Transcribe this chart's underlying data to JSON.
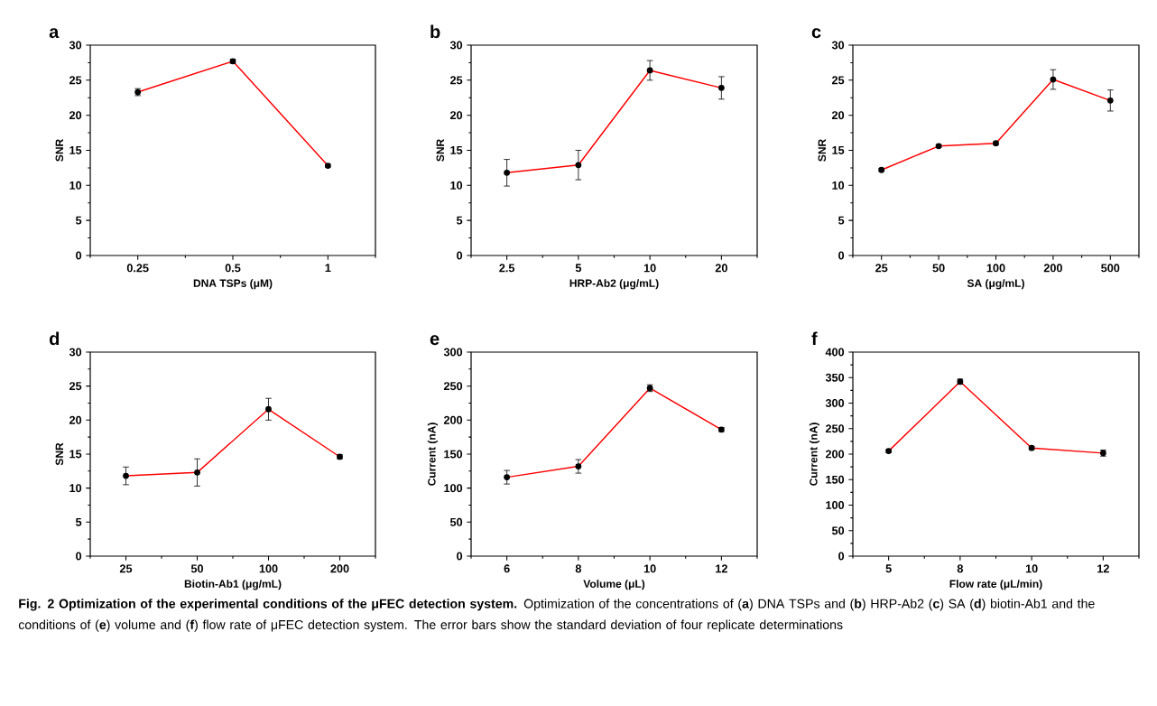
{
  "chart_data": [
    {
      "type": "line",
      "title": "a",
      "xlabel": "DNA TSPs (μM)",
      "ylabel": "SNR",
      "categories": [
        "0.25",
        "0.5",
        "1"
      ],
      "values": [
        23.3,
        27.7,
        12.8
      ],
      "errors": [
        0.5,
        0.3,
        0.2
      ],
      "color": "#ff0000",
      "marker": "circle",
      "ylim": [
        0,
        30
      ],
      "yticks": [
        0,
        5,
        10,
        15,
        20,
        25,
        30
      ]
    },
    {
      "type": "line",
      "title": "b",
      "xlabel": "HRP-Ab2 (μg/mL)",
      "ylabel": "SNR",
      "categories": [
        "2.5",
        "5",
        "10",
        "20"
      ],
      "values": [
        11.8,
        12.9,
        26.4,
        23.9
      ],
      "errors": [
        1.9,
        2.1,
        1.4,
        1.6
      ],
      "color": "#ff0000",
      "marker": "circle",
      "ylim": [
        0,
        30
      ],
      "yticks": [
        0,
        5,
        10,
        15,
        20,
        25,
        30
      ]
    },
    {
      "type": "line",
      "title": "c",
      "xlabel": "SA (μg/mL)",
      "ylabel": "SNR",
      "categories": [
        "25",
        "50",
        "100",
        "200",
        "500"
      ],
      "values": [
        12.2,
        15.6,
        16.0,
        25.1,
        22.1
      ],
      "errors": [
        0.2,
        0.2,
        0.2,
        1.4,
        1.5
      ],
      "color": "#ff0000",
      "marker": "circle",
      "ylim": [
        0,
        30
      ],
      "yticks": [
        0,
        5,
        10,
        15,
        20,
        25,
        30
      ]
    },
    {
      "type": "line",
      "title": "d",
      "xlabel": "Biotin-Ab1 (μg/mL)",
      "ylabel": "SNR",
      "categories": [
        "25",
        "50",
        "100",
        "200"
      ],
      "values": [
        11.8,
        12.3,
        21.6,
        14.6
      ],
      "errors": [
        1.3,
        2.0,
        1.6,
        0.3
      ],
      "color": "#ff0000",
      "marker": "circle",
      "ylim": [
        0,
        30
      ],
      "yticks": [
        0,
        5,
        10,
        15,
        20,
        25,
        30
      ]
    },
    {
      "type": "line",
      "title": "e",
      "xlabel": "Volume (μL)",
      "ylabel": "Current (nA)",
      "categories": [
        "6",
        "8",
        "10",
        "12"
      ],
      "values": [
        116,
        132,
        247,
        186
      ],
      "errors": [
        10,
        10,
        5,
        3
      ],
      "color": "#ff0000",
      "marker": "circle",
      "ylim": [
        0,
        300
      ],
      "yticks": [
        0,
        50,
        100,
        150,
        200,
        250,
        300
      ]
    },
    {
      "type": "line",
      "title": "f",
      "xlabel": "Flow rate (μL/min)",
      "ylabel": "Current (nA)",
      "categories": [
        "5",
        "8",
        "10",
        "12"
      ],
      "values": [
        206,
        342,
        212,
        202
      ],
      "errors": [
        3,
        5,
        3,
        6
      ],
      "color": "#ff0000",
      "marker": "circle",
      "ylim": [
        0,
        400
      ],
      "yticks": [
        0,
        50,
        100,
        150,
        200,
        250,
        300,
        350,
        400
      ],
      "annotations": [
        "**Fig. 2 Optimization of the experimental conditions of the μFEC detection system.** Optimization of the concentrations of (**a**) DNA TSPs and (**b**) HRP-Ab2 (**c**) SA (**d**) biotin-Ab1 and the conditions of (**e**) volume and (**f**) flow rate of μFEC detection system. The error bars show the standard deviation of four replicate determinations"
      ]
    }
  ]
}
